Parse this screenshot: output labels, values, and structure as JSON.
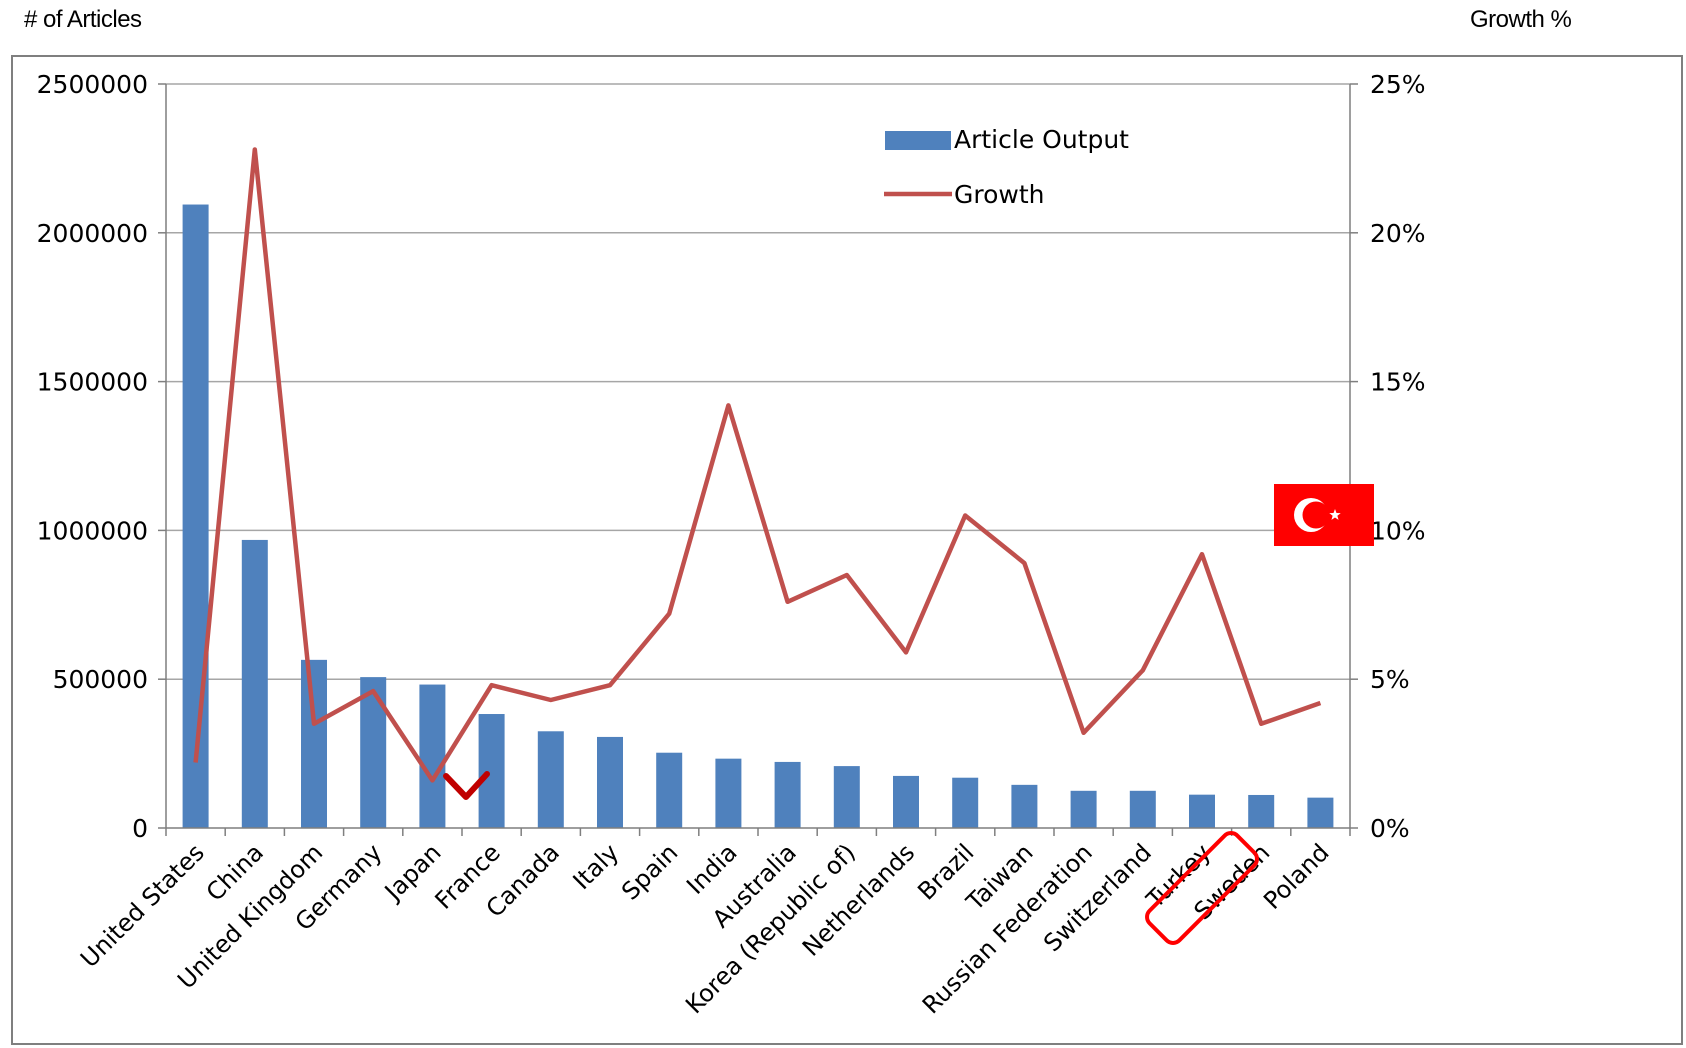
{
  "axis_units": {
    "left": "# of Articles",
    "right": "Growth %"
  },
  "colors": {
    "bars": "#4f81bd",
    "line": "#c0504d",
    "grid": "#a6a6a6",
    "frame": "#7f7f7f",
    "japan_mark": "#c00000",
    "turkey_highlight": "#ff0000",
    "flag_red": "#ff0000",
    "flag_white": "#ffffff"
  },
  "annotations": {
    "japan_marker": "check-mark",
    "turkey_label_box": "rounded-rectangle",
    "turkey_flag_icon": "turkey-flag-icon"
  },
  "chart_data": {
    "type": "bar",
    "categories": [
      "United States",
      "China",
      "United Kingdom",
      "Germany",
      "Japan",
      "France",
      "Canada",
      "Italy",
      "Spain",
      "India",
      "Australia",
      "Korea (Republic of)",
      "Netherlands",
      "Brazil",
      "Taiwan",
      "Russian Federation",
      "Switzerland",
      "Turkey",
      "Sweden",
      "Poland"
    ],
    "series": [
      {
        "name": "Article Output",
        "type": "bar",
        "axis": "left",
        "values": [
          2095000,
          968000,
          565000,
          507000,
          482000,
          383000,
          325000,
          306000,
          253000,
          233000,
          222000,
          208000,
          175000,
          169000,
          145000,
          125000,
          125000,
          112000,
          111000,
          102000
        ]
      },
      {
        "name": "Growth",
        "type": "line",
        "axis": "right",
        "values": [
          2.2,
          22.8,
          3.5,
          4.6,
          1.6,
          4.8,
          4.3,
          4.8,
          7.2,
          14.2,
          7.6,
          8.5,
          5.9,
          10.5,
          8.9,
          3.2,
          5.3,
          9.2,
          3.5,
          4.2
        ]
      }
    ],
    "y_left": {
      "ylim": [
        0,
        2500000
      ],
      "ticks": [
        "0",
        "500000",
        "1000000",
        "1500000",
        "2000000",
        "2500000"
      ]
    },
    "y_right": {
      "ylim": [
        0,
        25
      ],
      "ticks": [
        "0%",
        "5%",
        "10%",
        "15%",
        "20%",
        "25%"
      ]
    },
    "grid": true,
    "legend": "top-center",
    "legend_entries": [
      "Article Output",
      "Growth"
    ]
  }
}
